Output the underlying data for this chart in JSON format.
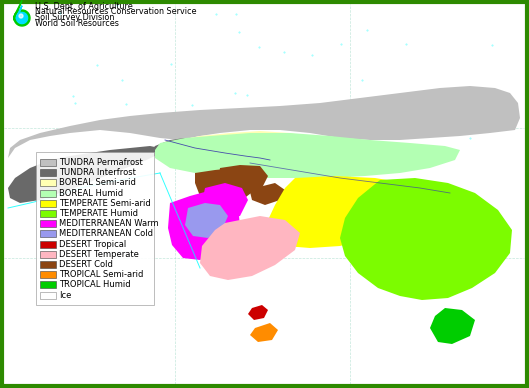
{
  "title_lines": [
    "U.S. Dept. of Agriculture",
    "Natural Resources Conservation Service",
    "Soil Survey Division",
    "World Soil Resources"
  ],
  "legend_items": [
    {
      "label": "TUNDRA Permafrost",
      "color": "#c0c0c0"
    },
    {
      "label": "TUNDRA Interfrost",
      "color": "#696969"
    },
    {
      "label": "BOREAL Semi-arid",
      "color": "#ffffb3"
    },
    {
      "label": "BOREAL Humid",
      "color": "#b3ffb3"
    },
    {
      "label": "TEMPERATE Semi-arid",
      "color": "#ffff00"
    },
    {
      "label": "TEMPERATE Humid",
      "color": "#7cfc00"
    },
    {
      "label": "MEDITERRANEAN Warm",
      "color": "#ff00ff"
    },
    {
      "label": "MEDITERRANEAN Cold",
      "color": "#9999ee"
    },
    {
      "label": "DESERT Tropical",
      "color": "#cc0000"
    },
    {
      "label": "DESERT Temperate",
      "color": "#ffb6c1"
    },
    {
      "label": "DESERT Cold",
      "color": "#8b4513"
    },
    {
      "label": "TROPICAL Semi-arid",
      "color": "#ff8c00"
    },
    {
      "label": "TROPICAL Humid",
      "color": "#00cd00"
    },
    {
      "label": "Ice",
      "color": "#ffffff"
    }
  ],
  "border_color": "#2d8a00",
  "ocean_color": "#ffffff",
  "map_bg": "#ffffff",
  "cyan_line": "#00ffff",
  "river_color": "#4444aa",
  "figsize": [
    5.29,
    3.88
  ],
  "dpi": 100
}
